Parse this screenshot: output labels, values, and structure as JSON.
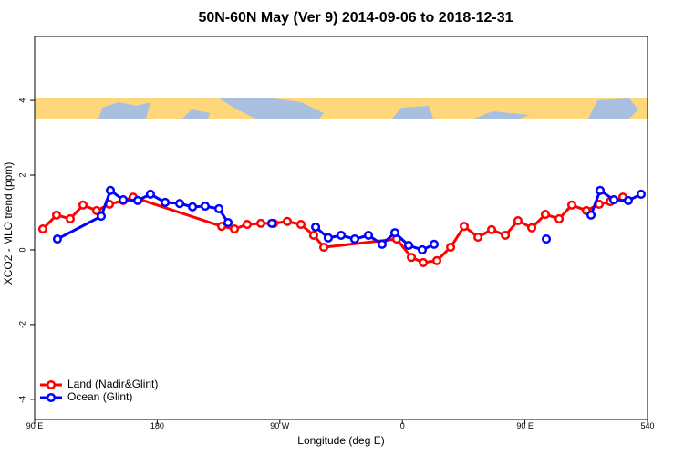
{
  "chart_data": {
    "type": "line",
    "title": "50N-60N May (Ver 9)   2014-09-06 to 2018-12-31",
    "xlabel": "Longitude (deg E)",
    "ylabel": "XCO2 - MLO trend (ppm)",
    "xlim": [
      90,
      540
    ],
    "ylim": [
      -4.54,
      5.71
    ],
    "xticks": [
      {
        "value": 90,
        "label": "90 E"
      },
      180,
      {
        "value": 270,
        "label": "90 W"
      },
      {
        "value": 360,
        "label": "0"
      },
      {
        "value": 450,
        "label": "90 E"
      },
      540
    ],
    "yticks": [
      -4,
      -2,
      0,
      2,
      4
    ],
    "legend": "bottomleft",
    "series": [
      {
        "name": "Land (Nadir&Glint)",
        "color": "#ff0000",
        "x": [
          96.0,
          106.1,
          116.1,
          125.5,
          135.5,
          144.9,
          155.0,
          162.3,
          227.3,
          236.7,
          246.0,
          256.1,
          265.5,
          275.5,
          285.5,
          294.9,
          302.3,
          355.8,
          366.6,
          375.3,
          385.3,
          395.4,
          405.4,
          415.5,
          425.5,
          435.6,
          444.9,
          455.0,
          465.0,
          475.1,
          484.4,
          495.1,
          504.5,
          512.6,
          521.9
        ],
        "values": [
          0.56,
          0.93,
          0.83,
          1.2,
          1.05,
          1.22,
          1.32,
          1.41,
          0.63,
          0.56,
          0.68,
          0.71,
          0.71,
          0.76,
          0.68,
          0.39,
          0.07,
          0.29,
          -0.2,
          -0.34,
          -0.29,
          0.07,
          0.63,
          0.34,
          0.54,
          0.39,
          0.78,
          0.59,
          0.95,
          0.83,
          1.2,
          1.05,
          1.22,
          1.29,
          1.41
        ]
      },
      {
        "name": "Ocean (Glint)",
        "color": "#0000ff",
        "x": [
          106.7,
          138.9,
          145.6,
          155.0,
          165.7,
          175.0,
          185.8,
          196.5,
          205.9,
          215.2,
          225.3,
          232.0,
          248.0,
          264.1,
          280.0,
          296.3,
          305.6,
          315.0,
          325.0,
          335.1,
          345.1,
          354.5,
          364.6,
          374.6,
          383.3,
          420.0,
          465.7,
          480.0,
          498.5,
          505.2,
          515.2,
          525.9,
          535.3
        ],
        "values": [
          0.29,
          0.9,
          1.59,
          1.34,
          1.32,
          1.49,
          1.27,
          1.24,
          1.15,
          1.17,
          1.1,
          0.73,
          null,
          0.71,
          null,
          0.61,
          0.32,
          0.39,
          0.29,
          0.39,
          0.15,
          0.46,
          0.12,
          0.0,
          0.15,
          null,
          0.29,
          null,
          0.93,
          1.59,
          1.34,
          1.32,
          1.49
        ]
      }
    ]
  }
}
